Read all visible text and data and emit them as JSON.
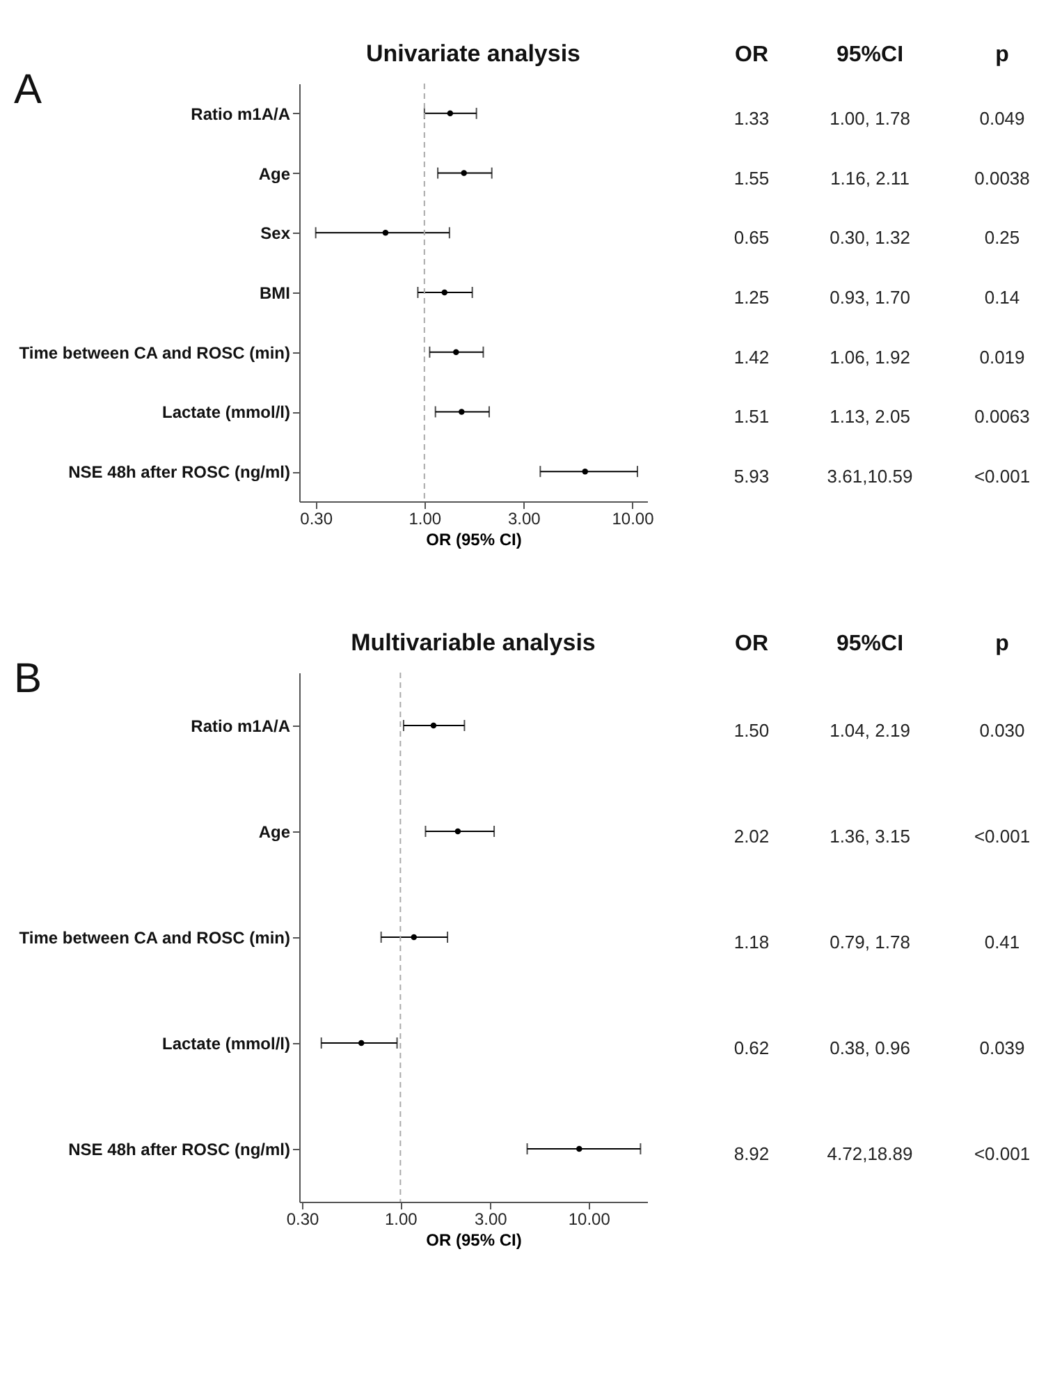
{
  "chart_data": [
    {
      "type": "scatter",
      "orientation": "horizontal",
      "title": "Univariate analysis",
      "xlabel": "OR (95% CI)",
      "marker": "circle",
      "categories": [
        "Ratio m1A/A",
        "Age",
        "Sex",
        "BMI",
        "Time between CA and ROSC (min)",
        "Lactate (mmol/l)",
        "NSE 48h after ROSC (ng/ml)"
      ],
      "series": [
        {
          "color": "#000000",
          "values": [
            1.33,
            1.55,
            0.65,
            1.25,
            1.42,
            1.51,
            5.93
          ],
          "value_labels": [
            "1.33",
            "1.55",
            "0.65",
            "1.25",
            "1.42",
            "1.51",
            "5.93"
          ],
          "errors": [
            [
              1.0,
              1.78
            ],
            [
              1.16,
              2.11
            ],
            [
              0.3,
              1.32
            ],
            [
              0.93,
              1.7
            ],
            [
              1.06,
              1.92
            ],
            [
              1.13,
              2.05
            ],
            [
              3.61,
              10.59
            ]
          ]
        }
      ],
      "xlim": [
        0.25,
        11.8
      ],
      "xticks": [
        {
          "value": 0.3,
          "label": "0.30"
        },
        {
          "value": 1,
          "label": "1.00"
        },
        {
          "value": 3,
          "label": "3.00"
        },
        {
          "value": 10,
          "label": "10.00"
        }
      ],
      "log": "x",
      "ref_lines": [
        {
          "axis": "x",
          "value": 1,
          "color": "#aaaaaa",
          "line_style": "dashed"
        }
      ],
      "annotations": [
        "A",
        "OR",
        "95%CI",
        "p",
        "1.00, 1.78",
        "0.049",
        "1.16, 2.11",
        "0.0038",
        "0.30, 1.32",
        "0.25",
        "0.93, 1.70",
        "0.14",
        "1.06, 1.92",
        "0.019",
        "1.13, 2.05",
        "0.0063",
        "3.61,10.59",
        "<0.001"
      ]
    },
    {
      "type": "scatter",
      "orientation": "horizontal",
      "title": "Multivariable analysis",
      "xlabel": "OR (95% CI)",
      "marker": "circle",
      "categories": [
        "Ratio m1A/A",
        "Age",
        "Time between CA and ROSC (min)",
        "Lactate (mmol/l)",
        "NSE 48h after ROSC (ng/ml)"
      ],
      "series": [
        {
          "color": "#000000",
          "values": [
            1.5,
            2.02,
            1.18,
            0.62,
            8.92
          ],
          "value_labels": [
            "1.50",
            "2.02",
            "1.18",
            "0.62",
            "8.92"
          ],
          "errors": [
            [
              1.04,
              2.19
            ],
            [
              1.36,
              3.15
            ],
            [
              0.79,
              1.78
            ],
            [
              0.38,
              0.96
            ],
            [
              4.72,
              18.89
            ]
          ]
        }
      ],
      "xlim": [
        0.29,
        20.5
      ],
      "xticks": [
        {
          "value": 0.3,
          "label": "0.30"
        },
        {
          "value": 1,
          "label": "1.00"
        },
        {
          "value": 3,
          "label": "3.00"
        },
        {
          "value": 10,
          "label": "10.00"
        }
      ],
      "log": "x",
      "ref_lines": [
        {
          "axis": "x",
          "value": 1,
          "color": "#aaaaaa",
          "line_style": "dashed"
        }
      ],
      "annotations": [
        "B",
        "OR",
        "95%CI",
        "p",
        "1.04, 2.19",
        "0.030",
        "1.36, 3.15",
        "<0.001",
        "0.79, 1.78",
        "0.41",
        "0.38, 0.96",
        "0.039",
        "4.72,18.89",
        "<0.001"
      ]
    }
  ]
}
